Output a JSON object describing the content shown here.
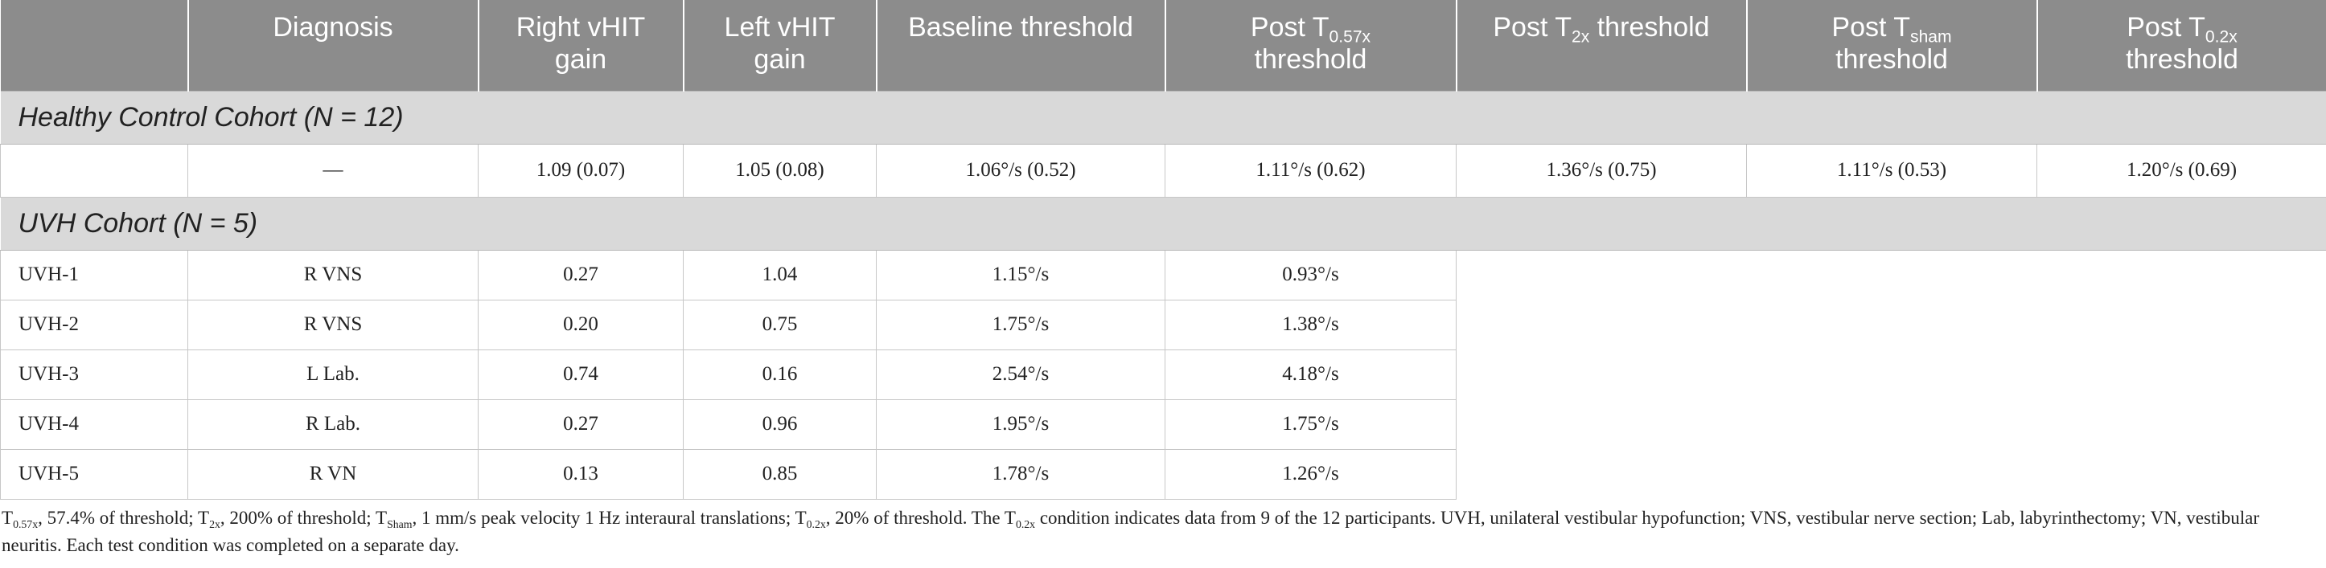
{
  "table": {
    "headers": {
      "col0": "",
      "diagnosis": "Diagnosis",
      "right_gain": {
        "line1": "Right vHIT",
        "line2": "gain"
      },
      "left_gain": {
        "line1": "Left vHIT",
        "line2": "gain"
      },
      "baseline": "Baseline threshold",
      "post_057": {
        "pre": "Post T",
        "sub": "0.57x",
        "line2": "threshold"
      },
      "post_2x": {
        "pre": "Post T",
        "sub": "2x",
        "post": " threshold"
      },
      "post_sham": {
        "pre": "Post T",
        "sub": "sham",
        "line2": "threshold"
      },
      "post_02x": {
        "pre": "Post T",
        "sub": "0.2x",
        "line2": "threshold"
      }
    },
    "healthy_cohort": {
      "label_pre": "Healthy Control Cohort (",
      "label_n": "N",
      "label_post": " = 12)",
      "row": [
        "",
        "—",
        "1.09 (0.07)",
        "1.05 (0.08)",
        "1.06°/s (0.52)",
        "1.11°/s (0.62)",
        "1.36°/s (0.75)",
        "1.11°/s (0.53)",
        "1.20°/s (0.69)"
      ]
    },
    "uvh_cohort": {
      "label_pre": "UVH Cohort (",
      "label_n": "N",
      "label_post": " = 5)",
      "rows": [
        [
          "UVH-1",
          "R VNS",
          "0.27",
          "1.04",
          "1.15°/s",
          "0.93°/s"
        ],
        [
          "UVH-2",
          "R VNS",
          "0.20",
          "0.75",
          "1.75°/s",
          "1.38°/s"
        ],
        [
          "UVH-3",
          "L Lab.",
          "0.74",
          "0.16",
          "2.54°/s",
          "4.18°/s"
        ],
        [
          "UVH-4",
          "R Lab.",
          "0.27",
          "0.96",
          "1.95°/s",
          "1.75°/s"
        ],
        [
          "UVH-5",
          "R VN",
          "0.13",
          "0.85",
          "1.78°/s",
          "1.26°/s"
        ]
      ]
    }
  },
  "footnote": {
    "p1_T": "T",
    "p1_sub": "0.57x",
    "p1_text": ", 57.4% of threshold; T",
    "p2_sub": "2x",
    "p2_text": ", 200% of threshold; T",
    "p3_sub": "Sham",
    "p3_text": ", 1 mm/s peak velocity 1 Hz interaural translations; T",
    "p4_sub": "0.2x",
    "p4_text": ", 20% of threshold. The T",
    "p5_sub": "0.2x",
    "p5_text": " condition indicates data from 9 of the 12 participants. UVH, unilateral vestibular hypofunction; VNS, vestibular nerve section; Lab, labyrinthectomy; VN, vestibular neuritis. Each test condition was completed on a separate day."
  }
}
